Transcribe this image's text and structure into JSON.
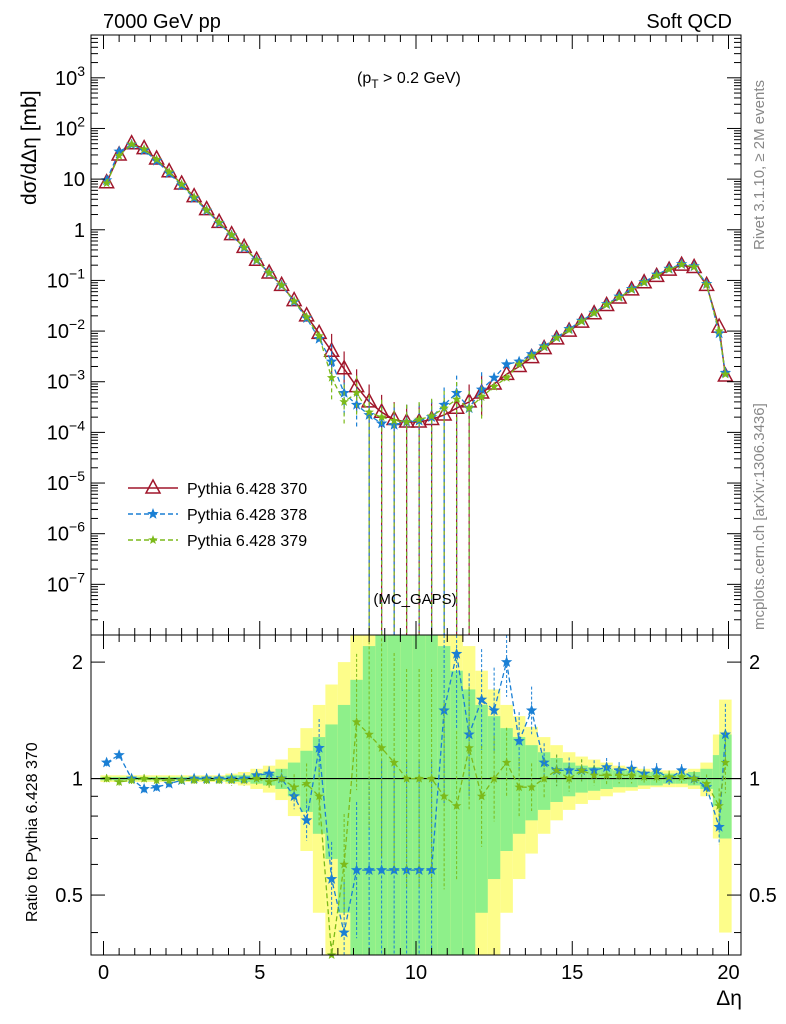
{
  "header": {
    "left": "7000 GeV pp",
    "right": "Soft QCD"
  },
  "side_labels": {
    "top": "Rivet 3.1.10, ≥ 2M events",
    "bottom": "mcplots.cern.ch [arXiv:1306.3436]"
  },
  "annotation": "(p_T > 0.2 GeV)",
  "annotation_parts": {
    "open": "(p",
    "sub": "T",
    "close": " > 0.2 GeV)"
  },
  "watermark": "(MC_GAPS)",
  "colors": {
    "series370": "#a0162b",
    "series378": "#1a7fd4",
    "series379": "#7cba1a",
    "band_inner": "#8ef08a",
    "band_outer": "#fdfd8a"
  },
  "chart_data": [
    {
      "type": "line",
      "panel": "main",
      "xlabel": "Δη",
      "ylabel": "dσ/dΔη [mb]",
      "xlim": [
        -0.4,
        20.4
      ],
      "ylim": [
        1e-08,
        7000
      ],
      "log_y": true,
      "y_tick_labels": [
        "10^-7",
        "10^-6",
        "10^-5",
        "10^-4",
        "10^-3",
        "10^-2",
        "10^-1",
        "1",
        "10",
        "10^2",
        "10^3"
      ],
      "x_tick_labels": [
        "0",
        "5",
        "10",
        "15",
        "20"
      ],
      "legend_position": "center-left",
      "x": [
        0.1,
        0.5,
        0.9,
        1.3,
        1.7,
        2.1,
        2.5,
        2.9,
        3.3,
        3.7,
        4.1,
        4.5,
        4.9,
        5.3,
        5.7,
        6.1,
        6.5,
        6.9,
        7.3,
        7.7,
        8.1,
        8.5,
        8.9,
        9.3,
        9.7,
        10.1,
        10.5,
        10.9,
        11.3,
        11.7,
        12.1,
        12.5,
        12.9,
        13.3,
        13.7,
        14.1,
        14.5,
        14.9,
        15.3,
        15.7,
        16.1,
        16.5,
        16.9,
        17.3,
        17.7,
        18.1,
        18.5,
        18.9,
        19.3,
        19.7,
        19.9
      ],
      "series": [
        {
          "name": "Pythia 6.428 370",
          "values": [
            8.5,
            30,
            50,
            40,
            25,
            14,
            8,
            4.5,
            2.5,
            1.4,
            0.8,
            0.45,
            0.25,
            0.14,
            0.08,
            0.04,
            0.02,
            0.009,
            0.004,
            0.0018,
            0.0008,
            0.0004,
            0.00025,
            0.00018,
            0.00016,
            0.00016,
            0.00018,
            0.00022,
            0.0003,
            0.0004,
            0.0006,
            0.0009,
            0.0014,
            0.002,
            0.003,
            0.0045,
            0.007,
            0.01,
            0.015,
            0.022,
            0.032,
            0.045,
            0.065,
            0.09,
            0.12,
            0.16,
            0.2,
            0.18,
            0.08,
            0.012,
            0.0013
          ]
        },
        {
          "name": "Pythia 6.428 378",
          "values": [
            9.5,
            35,
            48,
            37,
            23,
            13,
            7.5,
            4.2,
            2.4,
            1.35,
            0.78,
            0.44,
            0.25,
            0.14,
            0.08,
            0.038,
            0.018,
            0.007,
            0.0025,
            0.0006,
            0.00035,
            0.00022,
            0.00015,
            0.00014,
            0.00016,
            0.00017,
            0.0002,
            0.00035,
            0.0006,
            0.0003,
            0.0007,
            0.0012,
            0.0022,
            0.0025,
            0.0035,
            0.005,
            0.0075,
            0.011,
            0.016,
            0.023,
            0.034,
            0.048,
            0.068,
            0.093,
            0.13,
            0.17,
            0.21,
            0.19,
            0.085,
            0.009,
            0.0015
          ]
        },
        {
          "name": "Pythia 6.428 379",
          "values": [
            8.3,
            29,
            49,
            39,
            24.5,
            13.8,
            7.9,
            4.4,
            2.45,
            1.38,
            0.79,
            0.45,
            0.25,
            0.14,
            0.08,
            0.039,
            0.019,
            0.008,
            0.0012,
            0.0004,
            0.0006,
            0.00025,
            0.0002,
            0.00017,
            0.00016,
            0.00018,
            0.00021,
            0.0003,
            0.00045,
            0.0003,
            0.0005,
            0.0008,
            0.0012,
            0.0022,
            0.0032,
            0.0048,
            0.0073,
            0.0105,
            0.0155,
            0.0225,
            0.033,
            0.046,
            0.066,
            0.091,
            0.125,
            0.165,
            0.205,
            0.185,
            0.082,
            0.01,
            0.0014
          ]
        }
      ]
    },
    {
      "type": "line",
      "panel": "ratio",
      "ylabel": "Ratio to Pythia 6.428 370",
      "xlabel": "Δη",
      "xlim": [
        -0.4,
        20.4
      ],
      "ylim": [
        0.35,
        2.35
      ],
      "log_y": true,
      "y_tick_labels": [
        "0.5",
        "1",
        "2"
      ],
      "x_tick_labels": [
        "0",
        "5",
        "10",
        "15",
        "20"
      ],
      "reference_line": 1,
      "x": [
        0.1,
        0.5,
        0.9,
        1.3,
        1.7,
        2.1,
        2.5,
        2.9,
        3.3,
        3.7,
        4.1,
        4.5,
        4.9,
        5.3,
        5.7,
        6.1,
        6.5,
        6.9,
        7.3,
        7.7,
        8.1,
        8.5,
        8.9,
        9.3,
        9.7,
        10.1,
        10.5,
        10.9,
        11.3,
        11.7,
        12.1,
        12.5,
        12.9,
        13.3,
        13.7,
        14.1,
        14.5,
        14.9,
        15.3,
        15.7,
        16.1,
        16.5,
        16.9,
        17.3,
        17.7,
        18.1,
        18.5,
        18.9,
        19.3,
        19.7,
        19.9
      ],
      "band_rel_inner": [
        0.01,
        0.01,
        0.01,
        0.01,
        0.01,
        0.01,
        0.01,
        0.01,
        0.01,
        0.01,
        0.02,
        0.02,
        0.03,
        0.04,
        0.06,
        0.1,
        0.18,
        0.28,
        0.38,
        0.55,
        0.8,
        1.2,
        1.5,
        1.5,
        1.5,
        1.5,
        1.5,
        1.2,
        0.9,
        0.7,
        0.55,
        0.45,
        0.35,
        0.28,
        0.22,
        0.17,
        0.13,
        0.1,
        0.08,
        0.07,
        0.06,
        0.05,
        0.05,
        0.04,
        0.04,
        0.03,
        0.03,
        0.04,
        0.06,
        0.15,
        0.3
      ],
      "band_rel_outer": [
        0.02,
        0.02,
        0.02,
        0.02,
        0.02,
        0.02,
        0.02,
        0.02,
        0.02,
        0.02,
        0.03,
        0.04,
        0.06,
        0.08,
        0.12,
        0.2,
        0.35,
        0.55,
        0.75,
        1.0,
        1.5,
        2,
        2,
        2,
        2,
        2,
        2,
        2,
        1.6,
        1.2,
        0.9,
        0.7,
        0.55,
        0.45,
        0.36,
        0.28,
        0.22,
        0.17,
        0.14,
        0.12,
        0.1,
        0.08,
        0.07,
        0.06,
        0.05,
        0.05,
        0.05,
        0.06,
        0.1,
        0.3,
        0.6
      ],
      "series": [
        {
          "name": "Pythia 6.428 378",
          "values": [
            1.1,
            1.15,
            1.0,
            0.94,
            0.95,
            0.97,
            0.99,
            1.0,
            1.0,
            1.0,
            1.0,
            1.0,
            1.02,
            1.03,
            1.0,
            0.9,
            0.78,
            1.2,
            0.55,
            0.4,
            0.58,
            0.58,
            0.58,
            0.58,
            0.58,
            0.58,
            0.58,
            1.5,
            2.1,
            1.3,
            1.6,
            1.5,
            2.0,
            1.25,
            1.5,
            1.1,
            1.05,
            1.05,
            1.05,
            1.05,
            1.07,
            1.05,
            1.06,
            1.03,
            1.05,
            1.0,
            1.05,
            1.0,
            0.95,
            0.75,
            1.3
          ]
        },
        {
          "name": "Pythia 6.428 379",
          "values": [
            1.0,
            0.98,
            0.99,
            1.0,
            0.99,
            0.99,
            0.99,
            0.99,
            0.99,
            0.99,
            0.99,
            0.99,
            1.0,
            0.98,
            1.0,
            0.95,
            0.97,
            0.9,
            0.3,
            0.6,
            1.4,
            1.3,
            1.2,
            1.1,
            1.0,
            1.0,
            1.0,
            0.9,
            0.85,
            1.2,
            0.9,
            1.0,
            1.1,
            0.95,
            0.95,
            1.0,
            1.05,
            1.0,
            1.05,
            1.02,
            1.02,
            1.02,
            1.02,
            1.01,
            1.01,
            1.01,
            1.01,
            1.0,
            0.97,
            0.85,
            1.1
          ]
        }
      ]
    }
  ]
}
